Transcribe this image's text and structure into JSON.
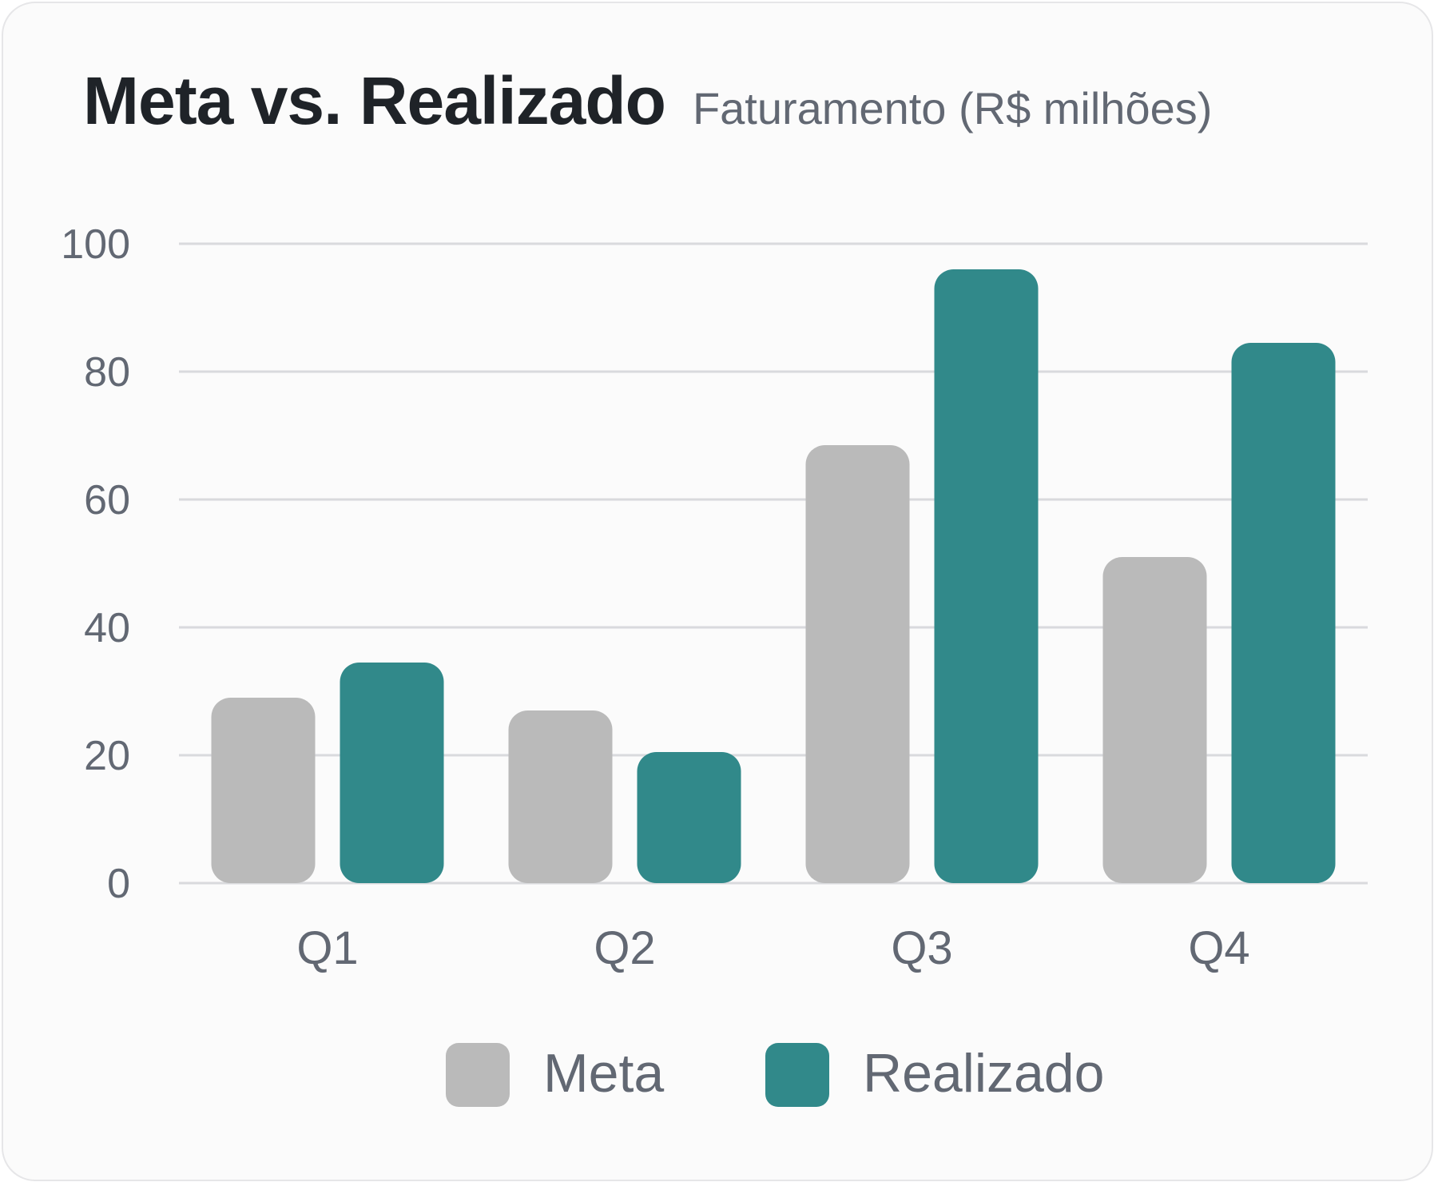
{
  "chart_data": {
    "type": "bar",
    "title": "Meta vs. Realizado",
    "subtitle": "Faturamento (R$ milhões)",
    "categories": [
      "Q1",
      "Q2",
      "Q3",
      "Q4"
    ],
    "series": [
      {
        "name": "Meta",
        "color": "#bababa",
        "values": [
          29,
          27,
          68.5,
          51
        ]
      },
      {
        "name": "Realizado",
        "color": "#31898a",
        "values": [
          34.5,
          20.5,
          96,
          84.5
        ]
      }
    ],
    "ylim": [
      0,
      100
    ],
    "yticks": [
      0,
      20,
      40,
      60,
      80,
      100
    ],
    "grid": true,
    "legend_position": "bottom-center",
    "xlabel": "",
    "ylabel": ""
  }
}
